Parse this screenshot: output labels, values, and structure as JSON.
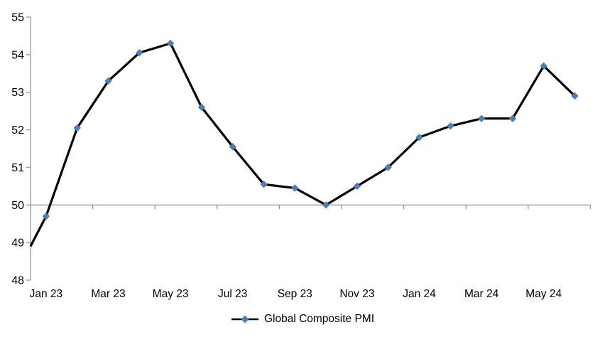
{
  "chart_data": {
    "type": "line",
    "title": "",
    "x": [
      "Jan 23",
      "Feb 23",
      "Mar 23",
      "Apr 23",
      "May 23",
      "Jun 23",
      "Jul 23",
      "Aug 23",
      "Sep 23",
      "Oct 23",
      "Nov 23",
      "Dec 23",
      "Jan 24",
      "Feb 24",
      "Mar 24",
      "Apr 24",
      "May 24",
      "Jun 24"
    ],
    "series": [
      {
        "name": "Global Composite PMI",
        "values": [
          49.7,
          52.05,
          53.3,
          54.05,
          54.3,
          52.6,
          51.55,
          50.55,
          50.45,
          50.0,
          50.5,
          51.0,
          51.8,
          52.1,
          52.3,
          52.3,
          53.7,
          52.9
        ]
      }
    ],
    "left_edge_line_start_value": 48.9,
    "ylim": [
      48,
      55
    ],
    "y_ticks": [
      55,
      54,
      53,
      52,
      51,
      50,
      49,
      48
    ],
    "x_tick_labels": [
      "Jan 23",
      "Mar 23",
      "May 23",
      "Jul 23",
      "Sep 23",
      "Nov 23",
      "Jan 24",
      "Mar 24",
      "May 24"
    ],
    "x_label_every": 2,
    "axis_cross_value": 50,
    "grid": "off",
    "legend_position": "bottom",
    "marker_shape": "diamond",
    "colors": {
      "line": "#000000",
      "marker": "#4A7EBB",
      "axis": "#969696",
      "text": "#000000"
    }
  }
}
